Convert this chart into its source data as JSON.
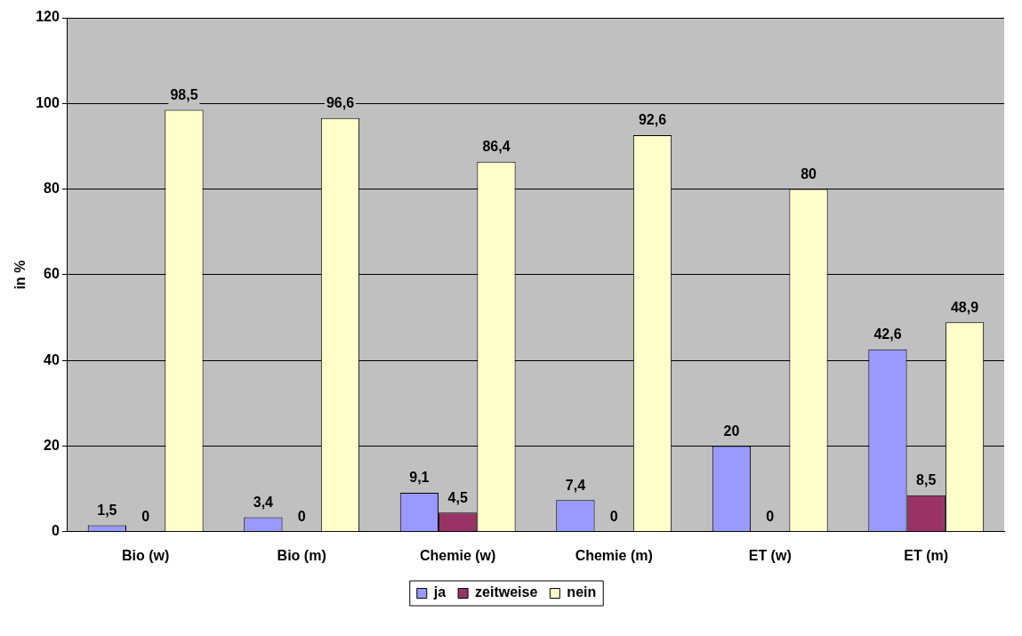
{
  "chart_data": {
    "type": "bar",
    "ylabel": "in %",
    "categories": [
      "Bio (w)",
      "Bio (m)",
      "Chemie (w)",
      "Chemie (m)",
      "ET (w)",
      "ET (m)"
    ],
    "series": [
      {
        "name": "ja",
        "color": "#9999ff",
        "values": [
          1.5,
          3.4,
          9.1,
          7.4,
          20,
          42.6
        ],
        "value_labels": [
          "1,5",
          "3,4",
          "9,1",
          "7,4",
          "20",
          "42,6"
        ]
      },
      {
        "name": "zeitweise",
        "color": "#993366",
        "values": [
          0,
          0,
          4.5,
          0,
          0,
          8.5
        ],
        "value_labels": [
          "0",
          "0",
          "4,5",
          "0",
          "0",
          "8,5"
        ]
      },
      {
        "name": "nein",
        "color": "#ffffcc",
        "values": [
          98.5,
          96.6,
          86.4,
          92.6,
          80,
          48.9
        ],
        "value_labels": [
          "98,5",
          "96,6",
          "86,4",
          "92,6",
          "80",
          "48,9"
        ]
      }
    ],
    "ylim": [
      0,
      120
    ],
    "yticks": [
      0,
      20,
      40,
      60,
      80,
      100,
      120
    ],
    "grid": "y",
    "legend": "bottom"
  }
}
